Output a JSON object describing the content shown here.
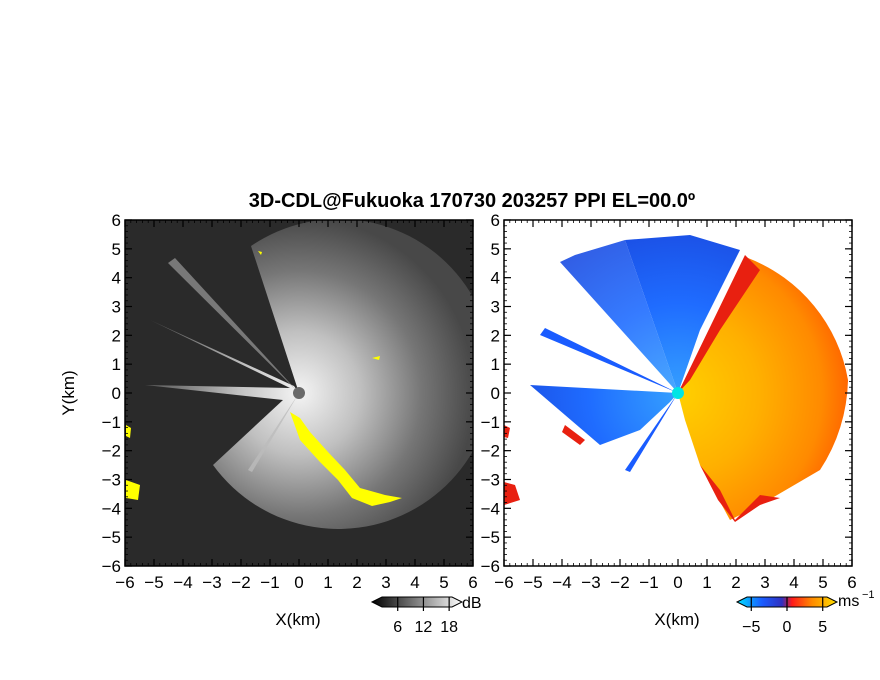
{
  "chart_data": {
    "type": "heatmap",
    "title": "3D-CDL@Fukuoka 170730 203257 PPI EL=00.0º",
    "panels": [
      {
        "name": "reflectivity",
        "xlabel": "X(km)",
        "ylabel": "Y(km)",
        "xlim": [
          -6,
          6
        ],
        "ylim": [
          -6,
          6
        ],
        "xticks": [
          "−6",
          "−5",
          "−4",
          "−3",
          "−2",
          "−1",
          "0",
          "1",
          "2",
          "3",
          "4",
          "5",
          "6"
        ],
        "yticks": [
          "6",
          "5",
          "4",
          "3",
          "2",
          "1",
          "0",
          "−1",
          "−2",
          "−3",
          "−4",
          "−5",
          "−6"
        ],
        "colorbar": {
          "unit": "dB",
          "ticks": [
            "6",
            "12",
            "18"
          ],
          "range": [
            0,
            21
          ],
          "colormap": "grayscale"
        },
        "highlight_color": "#ffff00"
      },
      {
        "name": "doppler-velocity",
        "xlabel": "X(km)",
        "ylabel": "",
        "xlim": [
          -6,
          6
        ],
        "ylim": [
          -6,
          6
        ],
        "xticks": [
          "−6",
          "−5",
          "−4",
          "−3",
          "−2",
          "−1",
          "0",
          "1",
          "2",
          "3",
          "4",
          "5",
          "6"
        ],
        "yticks": [
          "6",
          "5",
          "4",
          "3",
          "2",
          "1",
          "0",
          "−1",
          "−2",
          "−3",
          "−4",
          "−5",
          "−6"
        ],
        "colorbar": {
          "unit": "ms",
          "unit_exp": "−1",
          "ticks": [
            "−5",
            "0",
            "5"
          ],
          "range": [
            -7,
            7
          ],
          "colormap": "blue-cyan-red-orange-yellow"
        }
      }
    ]
  },
  "colors": {
    "background_dark": "#2a2a2a",
    "neg_velocity": "#1a5cff",
    "pos_velocity": "#ff7a00",
    "center_marker": "#00e5e5"
  }
}
